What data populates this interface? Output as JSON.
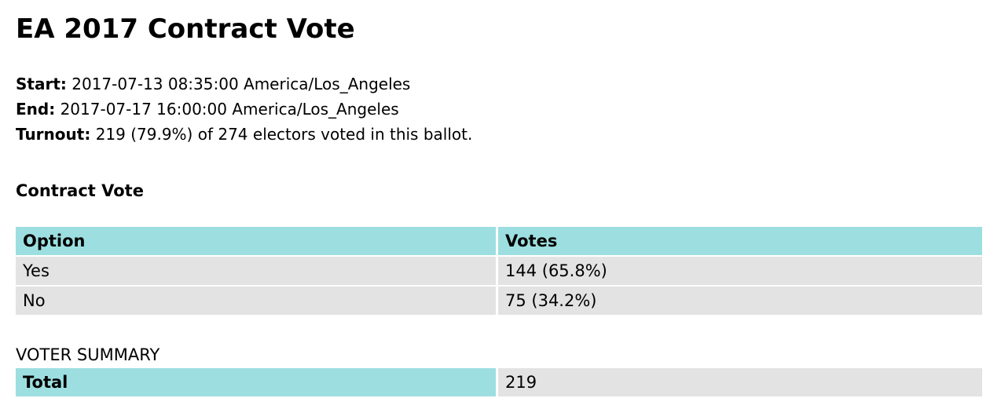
{
  "title": "EA 2017 Contract Vote",
  "meta": {
    "start_label": "Start:",
    "start_value": "2017-07-13 08:35:00 America/Los_Angeles",
    "end_label": "End:",
    "end_value": "2017-07-17 16:00:00 America/Los_Angeles",
    "turnout_label": "Turnout:",
    "turnout_value": "219 (79.9%) of 274 electors voted in this ballot."
  },
  "question": {
    "title": "Contract Vote",
    "headers": [
      "Option",
      "Votes"
    ],
    "rows": [
      {
        "option": "Yes",
        "votes": "144 (65.8%)"
      },
      {
        "option": "No",
        "votes": "75 (34.2%)"
      }
    ]
  },
  "summary": {
    "label": "VOTER SUMMARY",
    "total_label": "Total",
    "total_value": "219"
  },
  "colors": {
    "header_bg": "#9ddfe0",
    "row_bg": "#e3e3e3"
  }
}
